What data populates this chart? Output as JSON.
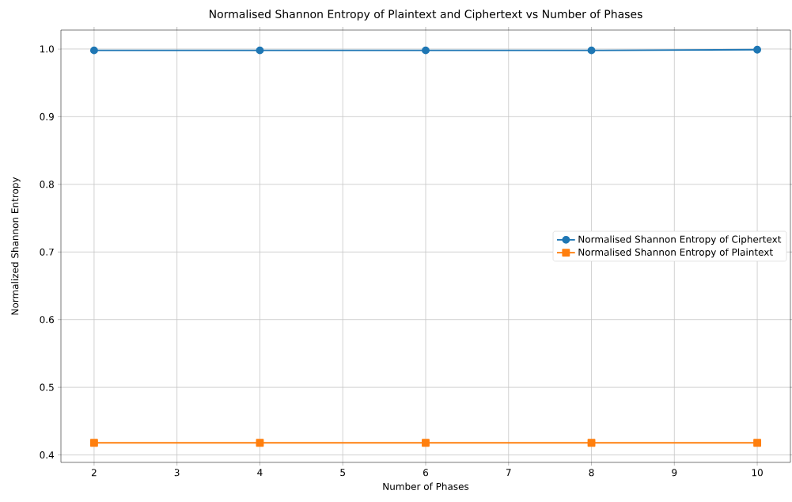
{
  "chart_data": {
    "type": "line",
    "title": "Normalised Shannon Entropy of Plaintext and Ciphertext vs Number of Phases",
    "xlabel": "Number of Phases",
    "ylabel": "Normalized Shannon Entropy",
    "x": [
      2,
      4,
      6,
      8,
      10
    ],
    "series": [
      {
        "name": "Normalised Shannon Entropy of Ciphertext",
        "color": "#1f77b4",
        "marker": "circle",
        "values": [
          0.998,
          0.998,
          0.998,
          0.998,
          0.999
        ]
      },
      {
        "name": "Normalised Shannon Entropy of Plaintext",
        "color": "#ff7f0e",
        "marker": "square",
        "values": [
          0.418,
          0.418,
          0.418,
          0.418,
          0.418
        ]
      }
    ],
    "xlim": [
      1.6,
      10.4
    ],
    "ylim": [
      0.389,
      1.028
    ],
    "xticks": [
      2,
      3,
      4,
      5,
      6,
      7,
      8,
      9,
      10
    ],
    "yticks": [
      0.4,
      0.5,
      0.6,
      0.7,
      0.8,
      0.9,
      {
        "value": 1.0,
        "label": "1.0"
      }
    ],
    "grid": true,
    "legend": "right",
    "line_style": "solid"
  }
}
